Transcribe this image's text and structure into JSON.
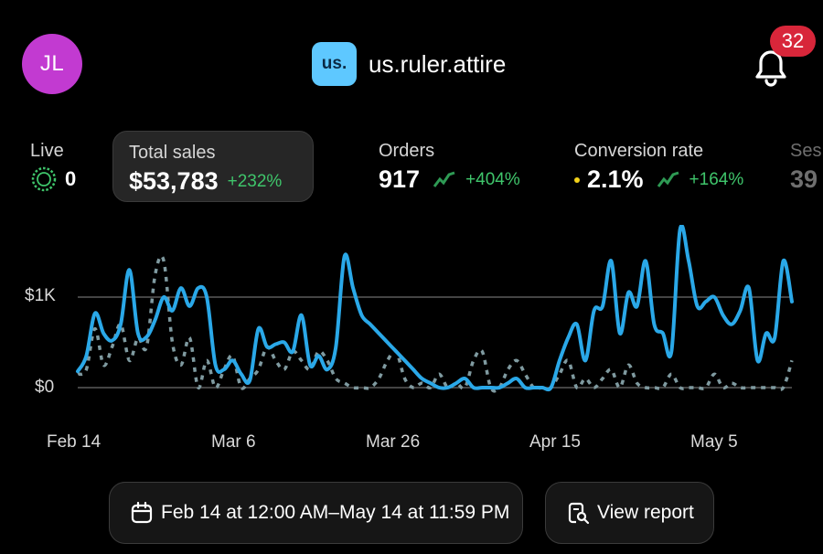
{
  "header": {
    "avatar_initials": "JL",
    "store_logo_text": "us.",
    "store_name": "us.ruler.attire",
    "notification_count": "32"
  },
  "metrics": {
    "live": {
      "label": "Live",
      "value": "0"
    },
    "total_sales": {
      "label": "Total sales",
      "value": "$53,783",
      "change": "+232%"
    },
    "orders": {
      "label": "Orders",
      "value": "917",
      "change": "+404%"
    },
    "conversion": {
      "label": "Conversion rate",
      "value": "2.1%",
      "change": "+164%"
    },
    "sessions": {
      "label": "Ses",
      "value": "39"
    }
  },
  "colors": {
    "accent_blue": "#2aa8e8",
    "comparison_gray": "#7f9aa0",
    "positive_green": "#3fc56b",
    "badge_red": "#d8263a",
    "avatar_purple": "#c23ad1",
    "logo_blue": "#5ec8ff"
  },
  "chart_data": {
    "type": "line",
    "y_tick_labels": [
      "$0",
      "$1K"
    ],
    "x_tick_labels": [
      "Feb 14",
      "Mar 6",
      "Mar 26",
      "Apr 15",
      "May 5"
    ],
    "ylim": [
      0,
      1900
    ],
    "grid": true,
    "x_days": 90,
    "series": [
      {
        "style": "solid",
        "color": "#2aa8e8",
        "values": [
          180,
          350,
          820,
          600,
          520,
          700,
          1300,
          600,
          560,
          750,
          1000,
          850,
          1100,
          900,
          1100,
          1000,
          250,
          200,
          300,
          150,
          80,
          650,
          450,
          480,
          500,
          400,
          800,
          250,
          350,
          200,
          450,
          1450,
          1100,
          800,
          700,
          600,
          500,
          400,
          300,
          200,
          100,
          50,
          0,
          0,
          50,
          100,
          0,
          0,
          0,
          0,
          50,
          100,
          0,
          0,
          0,
          0,
          300,
          550,
          700,
          300,
          850,
          900,
          1400,
          600,
          1050,
          900,
          1400,
          700,
          600,
          400,
          1750,
          1400,
          900,
          950,
          1000,
          800,
          700,
          850,
          1100,
          300,
          600,
          550,
          1400,
          950
        ]
      },
      {
        "style": "dashed",
        "color": "#7f9aa0",
        "values": [
          150,
          200,
          650,
          250,
          450,
          700,
          300,
          550,
          450,
          1250,
          1400,
          500,
          250,
          550,
          0,
          300,
          0,
          200,
          350,
          0,
          100,
          200,
          450,
          300,
          200,
          400,
          300,
          200,
          400,
          300,
          100,
          50,
          0,
          0,
          0,
          100,
          300,
          400,
          100,
          0,
          50,
          0,
          150,
          0,
          50,
          0,
          300,
          400,
          0,
          0,
          200,
          300,
          150,
          0,
          0,
          0,
          150,
          300,
          0,
          100,
          0,
          100,
          200,
          0,
          250,
          50,
          0,
          0,
          0,
          150,
          0,
          0,
          0,
          0,
          150,
          0,
          50,
          0,
          0,
          0,
          0,
          0,
          0,
          300
        ]
      }
    ]
  },
  "footer": {
    "date_range": "Feb 14 at 12:00 AM–May 14 at 11:59 PM",
    "view_report": "View report"
  }
}
